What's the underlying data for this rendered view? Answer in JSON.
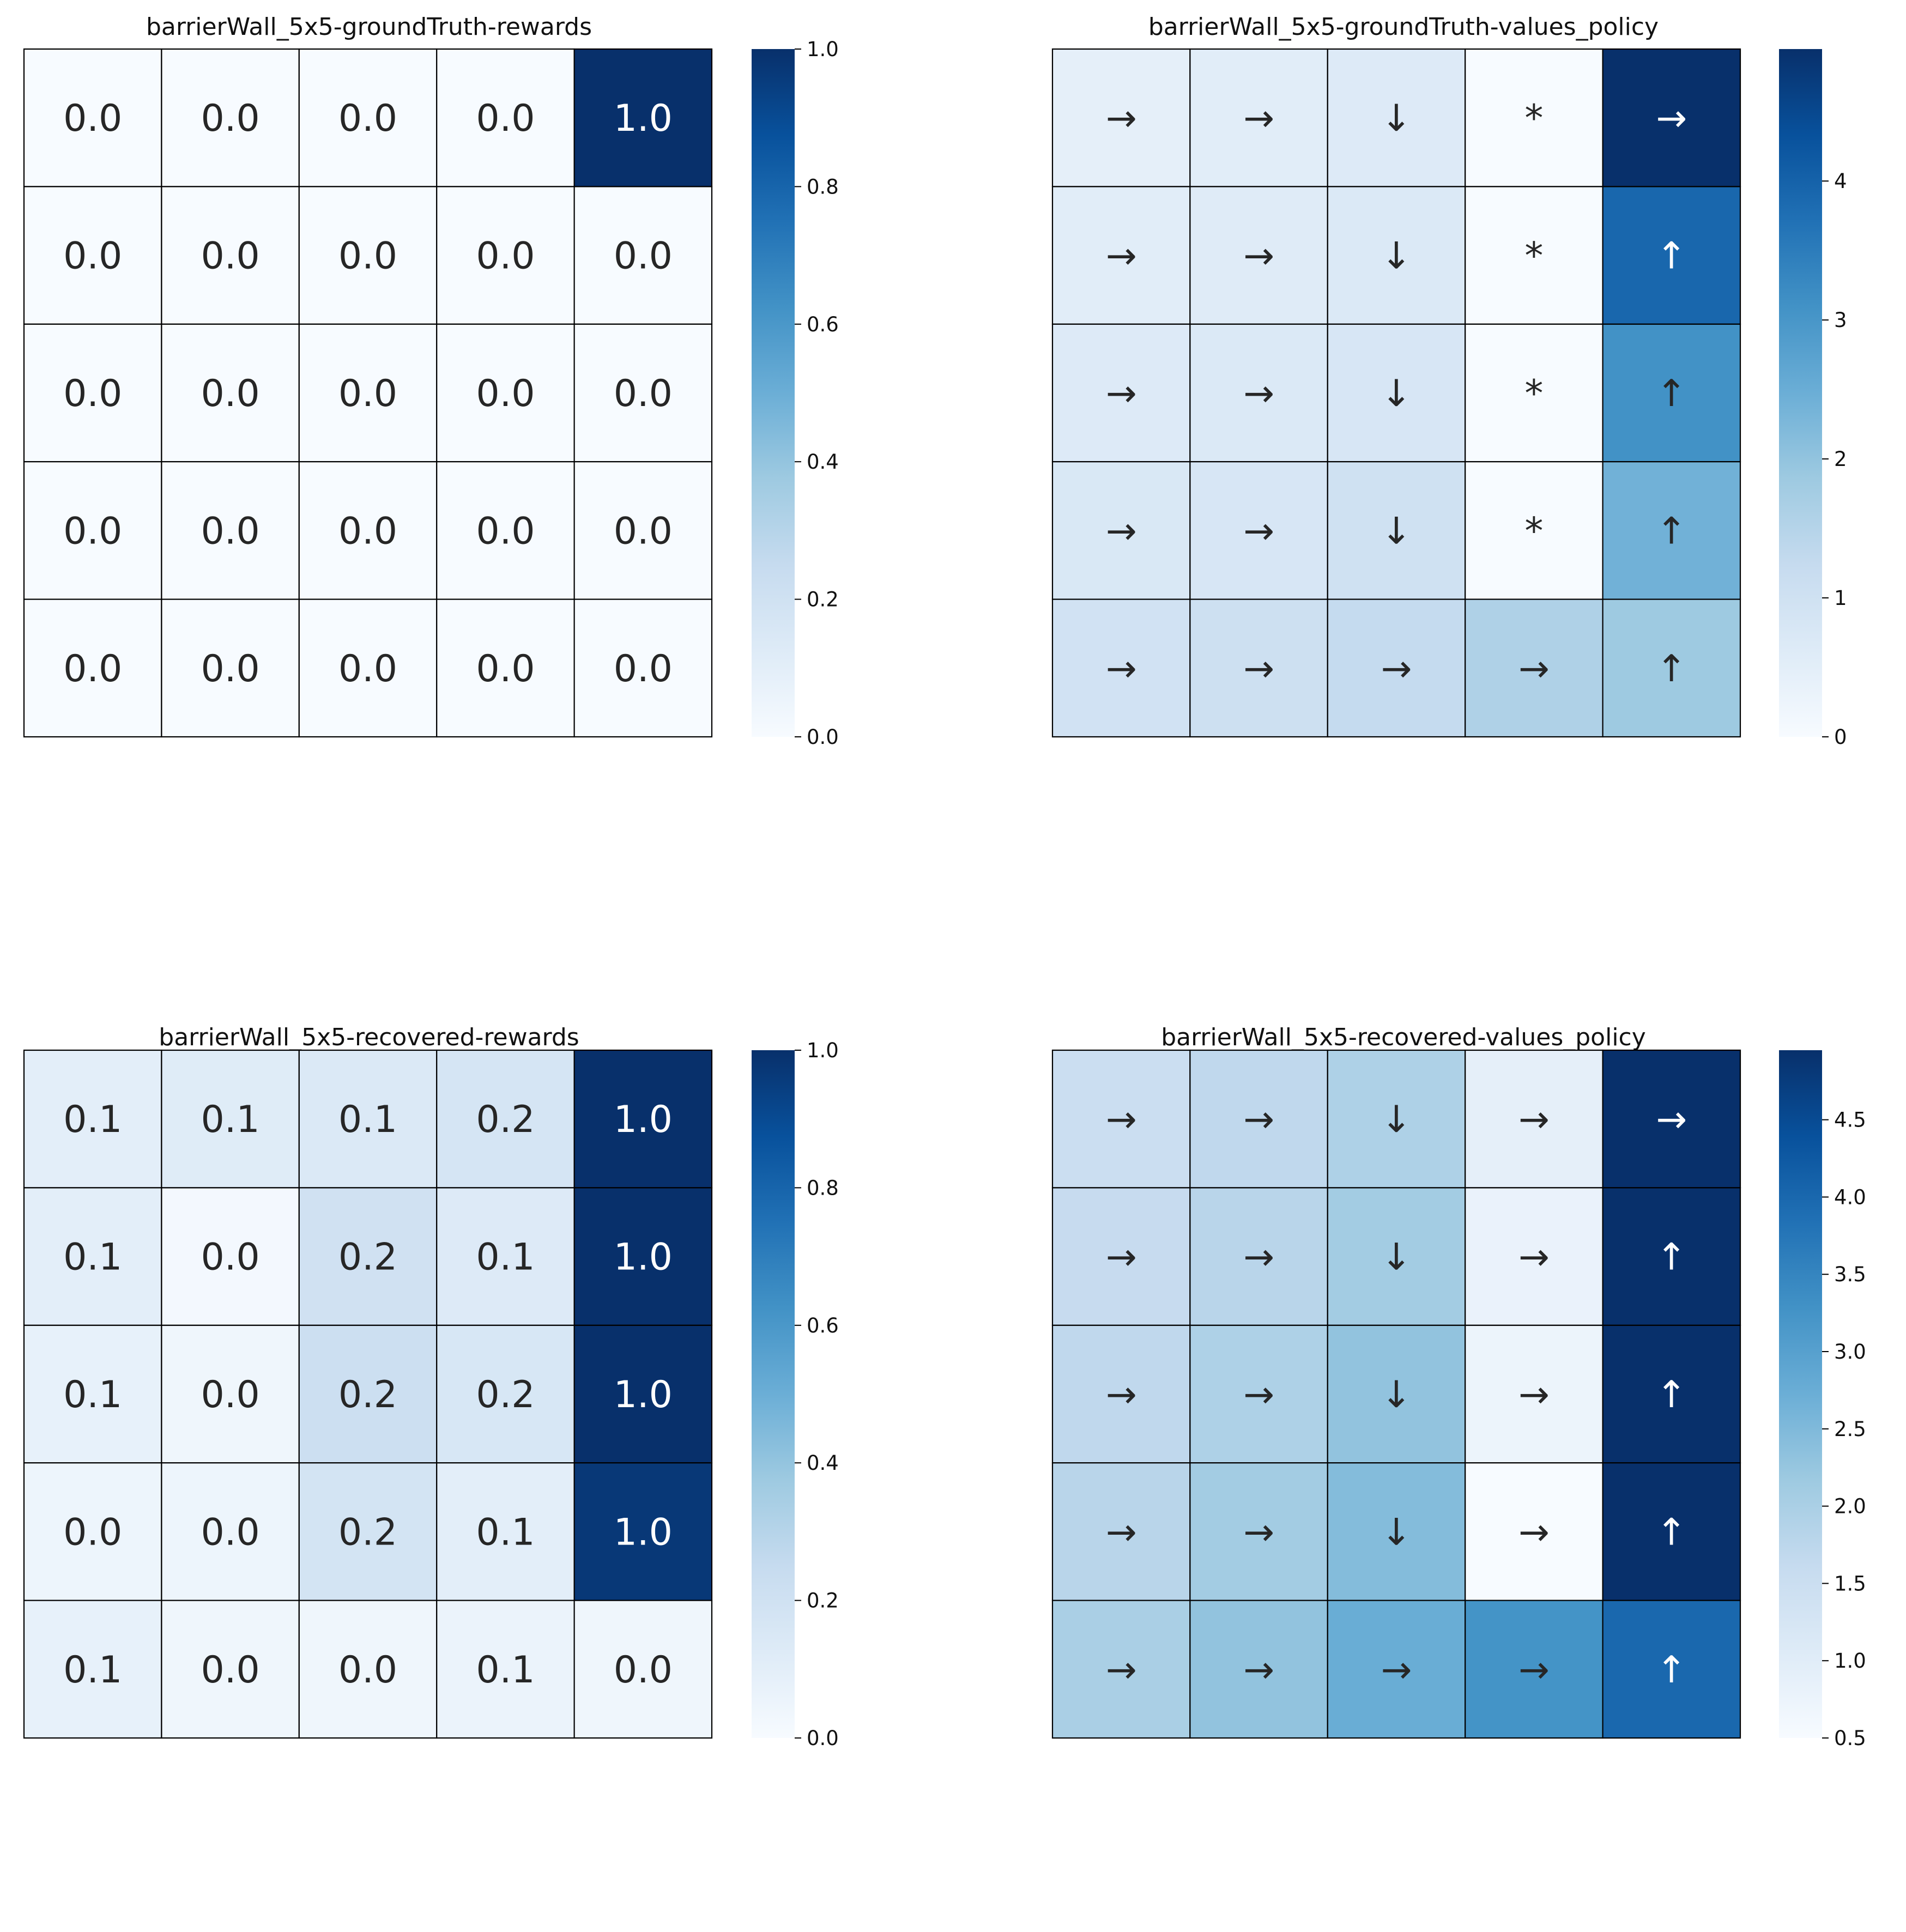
{
  "chart_data": [
    {
      "type": "heatmap",
      "title": "barrierWall_5x5-groundTruth-rewards",
      "colormap": "Blues",
      "grid": true,
      "vmin": 0.0,
      "vmax": 1.0,
      "colorbar_ticks": [
        0.0,
        0.2,
        0.4,
        0.6,
        0.8,
        1.0
      ],
      "colorbar_tick_labels": [
        "0.0",
        "0.2",
        "0.4",
        "0.6",
        "0.8",
        "1.0"
      ],
      "values": [
        [
          0.0,
          0.0,
          0.0,
          0.0,
          1.0
        ],
        [
          0.0,
          0.0,
          0.0,
          0.0,
          0.0
        ],
        [
          0.0,
          0.0,
          0.0,
          0.0,
          0.0
        ],
        [
          0.0,
          0.0,
          0.0,
          0.0,
          0.0
        ],
        [
          0.0,
          0.0,
          0.0,
          0.0,
          0.0
        ]
      ],
      "annotations": [
        [
          "0.0",
          "0.0",
          "0.0",
          "0.0",
          "1.0"
        ],
        [
          "0.0",
          "0.0",
          "0.0",
          "0.0",
          "0.0"
        ],
        [
          "0.0",
          "0.0",
          "0.0",
          "0.0",
          "0.0"
        ],
        [
          "0.0",
          "0.0",
          "0.0",
          "0.0",
          "0.0"
        ],
        [
          "0.0",
          "0.0",
          "0.0",
          "0.0",
          "0.0"
        ]
      ]
    },
    {
      "type": "heatmap",
      "title": "barrierWall_5x5-groundTruth-values_policy",
      "colormap": "Blues",
      "grid": true,
      "vmin": 0.0,
      "vmax": 4.95,
      "colorbar_ticks": [
        0,
        1,
        2,
        3,
        4
      ],
      "colorbar_tick_labels": [
        "0",
        "1",
        "2",
        "3",
        "4"
      ],
      "values": [
        [
          0.45,
          0.55,
          0.65,
          0.0,
          4.95
        ],
        [
          0.55,
          0.6,
          0.7,
          0.0,
          3.9
        ],
        [
          0.65,
          0.7,
          0.8,
          0.0,
          3.1
        ],
        [
          0.75,
          0.8,
          1.0,
          0.0,
          2.4
        ],
        [
          0.95,
          1.05,
          1.25,
          1.6,
          1.85
        ]
      ],
      "annotations": [
        [
          "→",
          "→",
          "↓",
          "*",
          "→"
        ],
        [
          "→",
          "→",
          "↓",
          "*",
          "↑"
        ],
        [
          "→",
          "→",
          "↓",
          "*",
          "↑"
        ],
        [
          "→",
          "→",
          "↓",
          "*",
          "↑"
        ],
        [
          "→",
          "→",
          "→",
          "→",
          "↑"
        ]
      ]
    },
    {
      "type": "heatmap",
      "title": "barrierWall_5x5-recovered-rewards",
      "colormap": "Blues",
      "grid": true,
      "vmin": 0.0,
      "vmax": 1.0,
      "colorbar_ticks": [
        0.0,
        0.2,
        0.4,
        0.6,
        0.8,
        1.0
      ],
      "colorbar_tick_labels": [
        "0.0",
        "0.2",
        "0.4",
        "0.6",
        "0.8",
        "1.0"
      ],
      "values": [
        [
          0.1,
          0.12,
          0.14,
          0.17,
          1.0
        ],
        [
          0.1,
          0.02,
          0.2,
          0.13,
          1.0
        ],
        [
          0.08,
          0.04,
          0.22,
          0.16,
          1.0
        ],
        [
          0.05,
          0.05,
          0.18,
          0.1,
          0.97
        ],
        [
          0.08,
          0.04,
          0.04,
          0.06,
          0.04
        ]
      ],
      "annotations": [
        [
          "0.1",
          "0.1",
          "0.1",
          "0.2",
          "1.0"
        ],
        [
          "0.1",
          "0.0",
          "0.2",
          "0.1",
          "1.0"
        ],
        [
          "0.1",
          "0.0",
          "0.2",
          "0.2",
          "1.0"
        ],
        [
          "0.0",
          "0.0",
          "0.2",
          "0.1",
          "1.0"
        ],
        [
          "0.1",
          "0.0",
          "0.0",
          "0.1",
          "0.0"
        ]
      ]
    },
    {
      "type": "heatmap",
      "title": "barrierWall_5x5-recovered-values_policy",
      "colormap": "Blues",
      "grid": true,
      "vmin": 0.5,
      "vmax": 4.95,
      "colorbar_ticks": [
        0.5,
        1.0,
        1.5,
        2.0,
        2.5,
        3.0,
        3.5,
        4.0,
        4.5
      ],
      "colorbar_tick_labels": [
        "0.5",
        "1.0",
        "1.5",
        "2.0",
        "2.5",
        "3.0",
        "3.5",
        "4.0",
        "4.5"
      ],
      "values": [
        [
          1.5,
          1.7,
          1.95,
          0.9,
          4.95
        ],
        [
          1.6,
          1.8,
          2.1,
          0.8,
          4.95
        ],
        [
          1.7,
          1.95,
          2.3,
          0.75,
          4.95
        ],
        [
          1.8,
          2.1,
          2.45,
          0.5,
          4.95
        ],
        [
          2.0,
          2.3,
          2.75,
          3.25,
          4.0
        ]
      ],
      "annotations": [
        [
          "→",
          "→",
          "↓",
          "→",
          "→"
        ],
        [
          "→",
          "→",
          "↓",
          "→",
          "↑"
        ],
        [
          "→",
          "→",
          "↓",
          "→",
          "↑"
        ],
        [
          "→",
          "→",
          "↓",
          "→",
          "↑"
        ],
        [
          "→",
          "→",
          "→",
          "→",
          "↑"
        ]
      ]
    }
  ]
}
